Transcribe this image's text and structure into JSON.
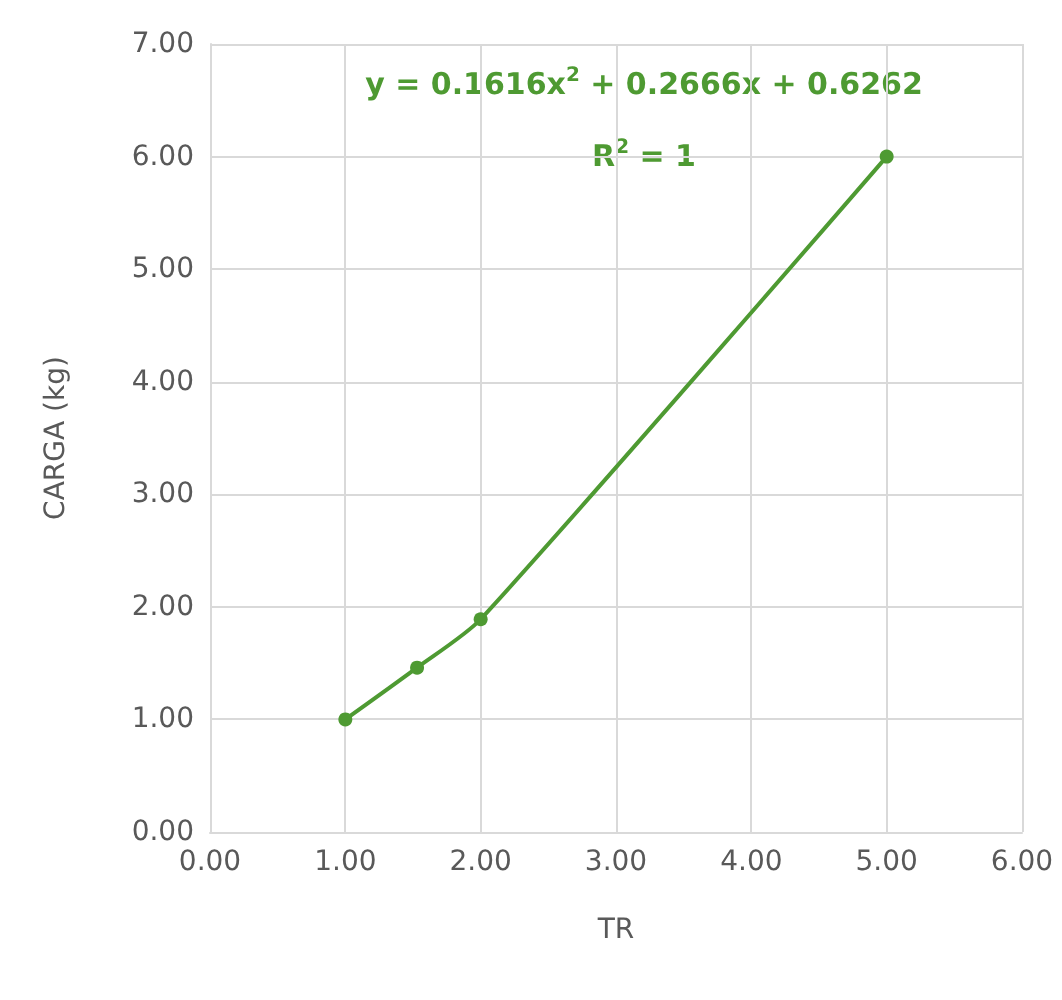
{
  "chart_data": {
    "type": "line",
    "xlabel": "TR",
    "ylabel": "CARGA (kg)",
    "x": [
      1,
      1.53,
      2,
      5
    ],
    "series": [
      {
        "color": "#4e9a32",
        "values": [
          1,
          1.46,
          1.89,
          6
        ]
      }
    ],
    "xlim": [
      0,
      6
    ],
    "xticks": [
      {
        "value": 0,
        "label": "0.00"
      },
      {
        "value": 1,
        "label": "1.00"
      },
      {
        "value": 2,
        "label": "2.00"
      },
      {
        "value": 3,
        "label": "3.00"
      },
      {
        "value": 4,
        "label": "4.00"
      },
      {
        "value": 5,
        "label": "5.00"
      },
      {
        "value": 6,
        "label": "6.00"
      }
    ],
    "ylim": [
      0,
      7
    ],
    "yticks": [
      {
        "value": 0,
        "label": "0.00"
      },
      {
        "value": 1,
        "label": "1.00"
      },
      {
        "value": 2,
        "label": "2.00"
      },
      {
        "value": 3,
        "label": "3.00"
      },
      {
        "value": 4,
        "label": "4.00"
      },
      {
        "value": 5,
        "label": "5.00"
      },
      {
        "value": 6,
        "label": "6.00"
      },
      {
        "value": 7,
        "label": "7.00"
      }
    ],
    "annotations": [
      "y = 0.1616x$^{2}$ + 0.2666x + 0.6262",
      "R$^{2}$ = 1"
    ],
    "grid": true,
    "marker": "circle",
    "line_style": "solid"
  }
}
